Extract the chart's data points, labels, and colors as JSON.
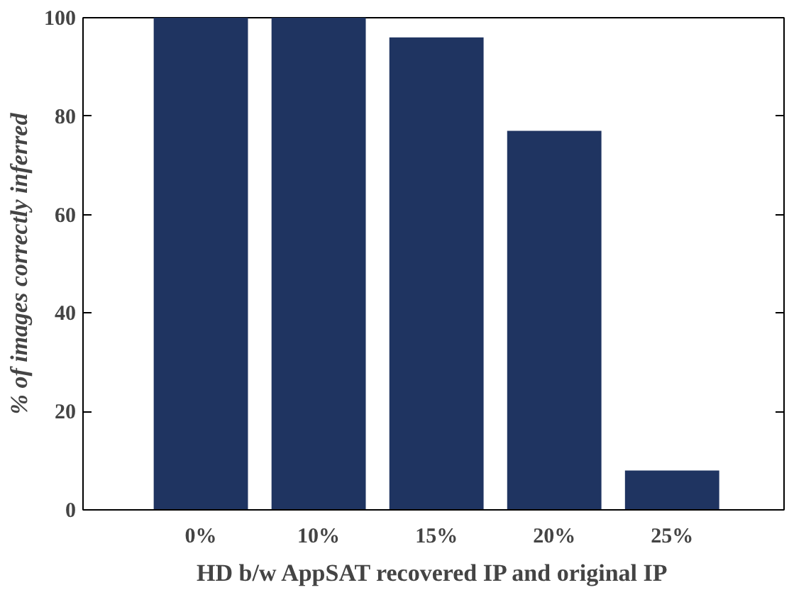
{
  "chart_data": {
    "type": "bar",
    "xlabel": "HD b/w AppSAT recovered IP and original IP",
    "ylabel": "% of images correctly inferred",
    "categories": [
      "0%",
      "10%",
      "15%",
      "20%",
      "25%"
    ],
    "values": [
      100,
      100,
      96,
      77,
      8
    ],
    "color": "#1f3461",
    "ylim": [
      0,
      100
    ],
    "yticks": [
      0,
      20,
      40,
      60,
      80,
      100
    ],
    "grid": false
  }
}
